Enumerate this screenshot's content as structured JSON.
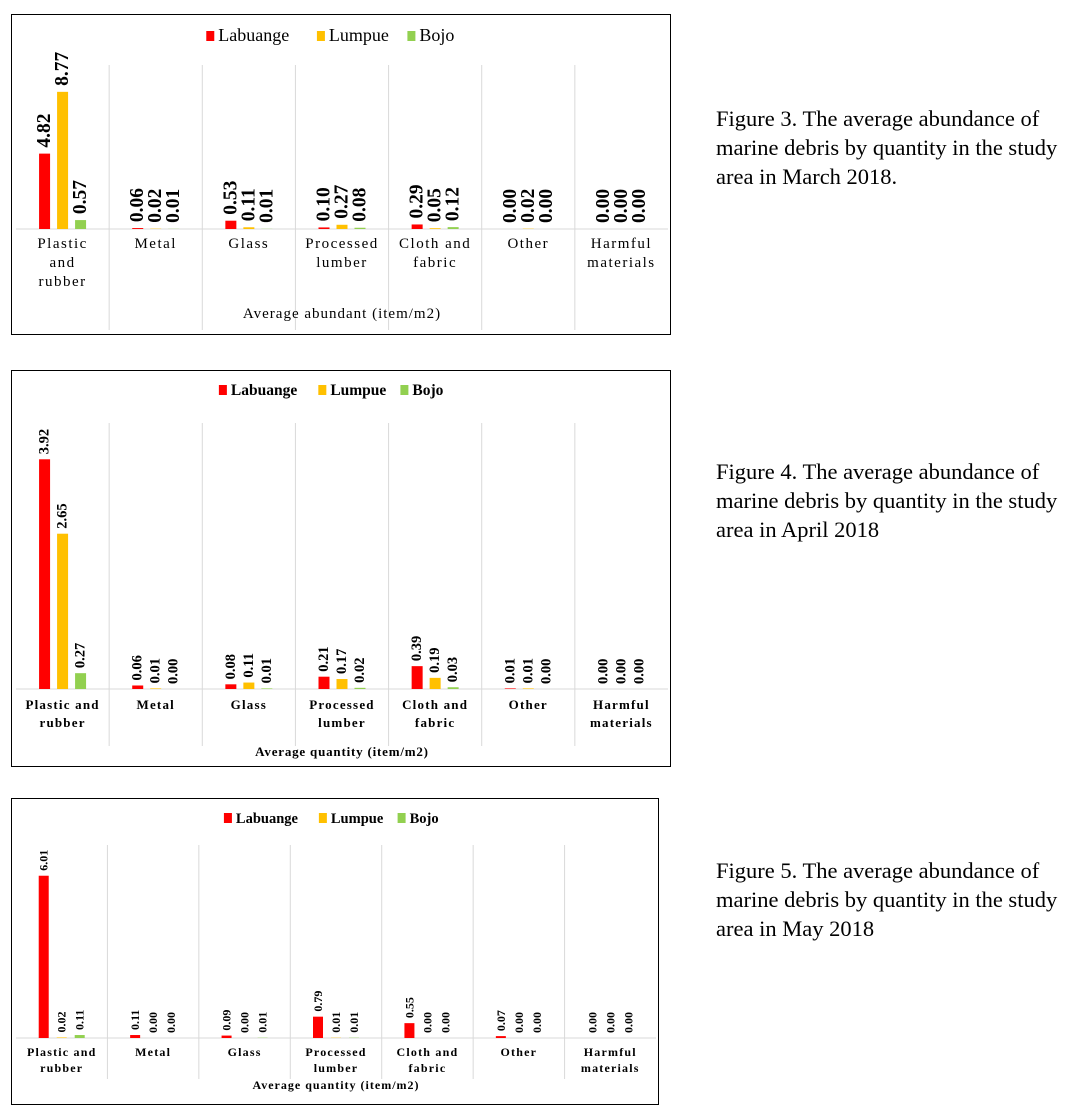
{
  "colors": {
    "Labuange": "#ff0000",
    "Lumpue": "#ffc000",
    "Bojo": "#92d050"
  },
  "figures": [
    {
      "caption": "Figure 3. The average abundance of marine debris by quantity in the study area in March 2018."
    },
    {
      "caption": "Figure 4. The average abundance of marine debris by quantity in the study area in April 2018"
    },
    {
      "caption": "Figure 5. The average abundance of marine debris by quantity in the study area in May 2018"
    }
  ],
  "chart_data": [
    {
      "type": "bar",
      "title": "",
      "xlabel": "Average abundant (item/m2)",
      "ylabel": "",
      "legend_position": "top",
      "categories": [
        [
          "Plastic",
          "and",
          "rubber"
        ],
        [
          "Metal"
        ],
        [
          "Glass"
        ],
        [
          "Processed",
          "lumber"
        ],
        [
          "Cloth and",
          "fabric"
        ],
        [
          "Other"
        ],
        [
          "Harmful",
          "materials"
        ]
      ],
      "series": [
        {
          "name": "Labuange",
          "values": [
            4.82,
            0.06,
            0.53,
            0.1,
            0.29,
            0.0,
            0.0
          ],
          "labels": [
            "4.82",
            "0.06",
            "0.53",
            "0.10",
            "0.29",
            "0.00",
            "0.00"
          ]
        },
        {
          "name": "Lumpue",
          "values": [
            8.77,
            0.02,
            0.11,
            0.27,
            0.05,
            0.02,
            0.0
          ],
          "labels": [
            "8.77",
            "0.02",
            "0.11",
            "0.27",
            "0.05",
            "0.02",
            "0.00"
          ]
        },
        {
          "name": "Bojo",
          "values": [
            0.57,
            0.01,
            0.01,
            0.08,
            0.12,
            0.0,
            0.0
          ],
          "labels": [
            "0.57",
            "0.01",
            "0.01",
            "0.08",
            "0.12",
            "0.00",
            "0.00"
          ]
        }
      ],
      "grid": "vertical category separators"
    },
    {
      "type": "bar",
      "title": "",
      "xlabel": "Average quantity (item/m2)",
      "ylabel": "",
      "legend_position": "top",
      "categories": [
        [
          "Plastic and",
          "rubber"
        ],
        [
          "Metal"
        ],
        [
          "Glass"
        ],
        [
          "Processed",
          "lumber"
        ],
        [
          "Cloth and",
          "fabric"
        ],
        [
          "Other"
        ],
        [
          "Harmful",
          "materials"
        ]
      ],
      "series": [
        {
          "name": "Labuange",
          "values": [
            3.92,
            0.06,
            0.08,
            0.21,
            0.39,
            0.01,
            0.0
          ],
          "labels": [
            "3.92",
            "0.06",
            "0.08",
            "0.21",
            "0.39",
            "0.01",
            "0.00"
          ]
        },
        {
          "name": "Lumpue",
          "values": [
            2.65,
            0.01,
            0.11,
            0.17,
            0.19,
            0.01,
            0.0
          ],
          "labels": [
            "2.65",
            "0.01",
            "0.11",
            "0.17",
            "0.19",
            "0.01",
            "0.00"
          ]
        },
        {
          "name": "Bojo",
          "values": [
            0.27,
            0.0,
            0.01,
            0.02,
            0.03,
            0.0,
            0.0
          ],
          "labels": [
            "0.27",
            "0.00",
            "0.01",
            "0.02",
            "0.03",
            "0.00",
            "0.00"
          ]
        }
      ],
      "grid": "vertical category separators"
    },
    {
      "type": "bar",
      "title": "",
      "xlabel": "Average quantity (item/m2)",
      "ylabel": "",
      "legend_position": "top",
      "categories": [
        [
          "Plastic and",
          "rubber"
        ],
        [
          "Metal"
        ],
        [
          "Glass"
        ],
        [
          "Processed",
          "lumber"
        ],
        [
          "Cloth and",
          "fabric"
        ],
        [
          "Other"
        ],
        [
          "Harmful",
          "materials"
        ]
      ],
      "series": [
        {
          "name": "Labuange",
          "values": [
            6.01,
            0.11,
            0.09,
            0.79,
            0.55,
            0.07,
            0.0
          ],
          "labels": [
            "6.01",
            "0.11",
            "0.09",
            "0.79",
            "0.55",
            "0.07",
            "0.00"
          ]
        },
        {
          "name": "Lumpue",
          "values": [
            0.02,
            0.0,
            0.0,
            0.01,
            0.0,
            0.0,
            0.0
          ],
          "labels": [
            "0.02",
            "0.00",
            "0.00",
            "0.01",
            "0.00",
            "0.00",
            "0.00"
          ]
        },
        {
          "name": "Bojo",
          "values": [
            0.11,
            0.0,
            0.01,
            0.01,
            0.0,
            0.0,
            0.0
          ],
          "labels": [
            "0.11",
            "0.00",
            "0.01",
            "0.01",
            "0.00",
            "0.00",
            "0.00"
          ]
        }
      ],
      "grid": "vertical category separators"
    }
  ]
}
